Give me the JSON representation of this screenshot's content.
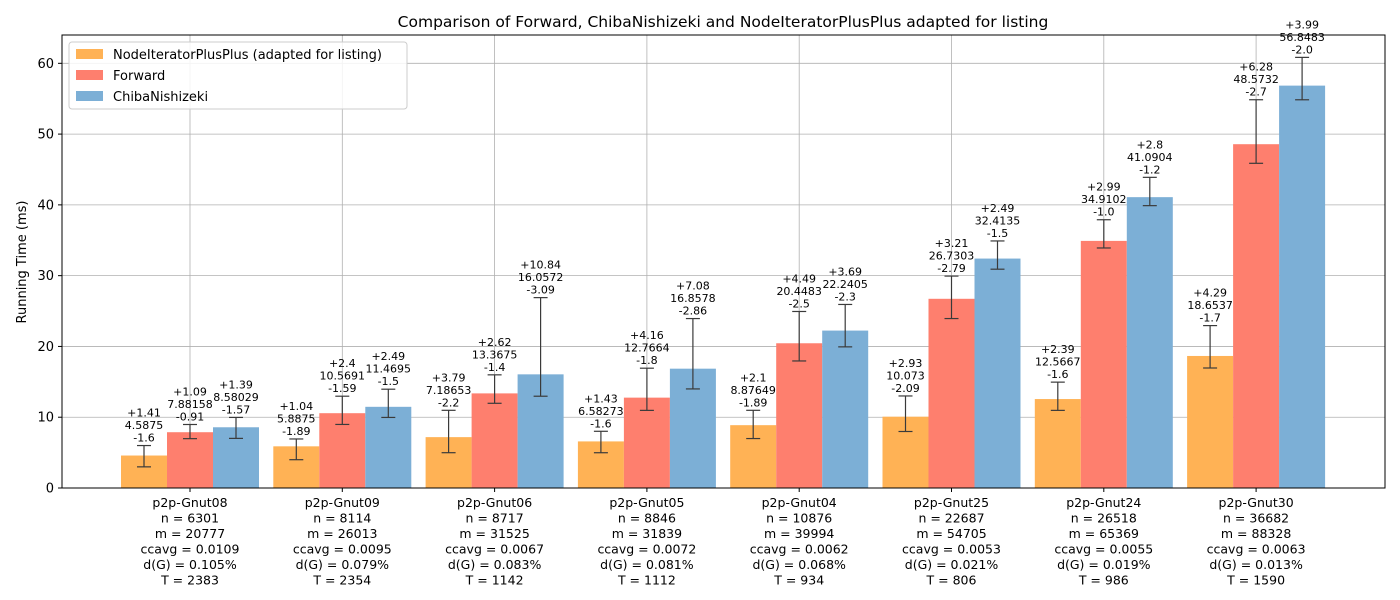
{
  "chart_data": {
    "type": "bar",
    "title": "Comparison of Forward, ChibaNishizeki and NodeIteratorPlusPlus adapted for listing",
    "xlabel": "",
    "ylabel": "Running Time (ms)",
    "ylim": [
      0,
      64
    ],
    "yticks": [
      0,
      10,
      20,
      30,
      40,
      50,
      60
    ],
    "grid": true,
    "legend_position": "top-left",
    "categories": [
      [
        "p2p-Gnut08",
        "n = 6301",
        "m = 20777",
        "ccavg = 0.0109",
        "d(G) = 0.105%",
        "T = 2383"
      ],
      [
        "p2p-Gnut09",
        "n = 8114",
        "m = 26013",
        "ccavg = 0.0095",
        "d(G) = 0.079%",
        "T = 2354"
      ],
      [
        "p2p-Gnut06",
        "n = 8717",
        "m = 31525",
        "ccavg = 0.0067",
        "d(G) = 0.083%",
        "T = 1142"
      ],
      [
        "p2p-Gnut05",
        "n = 8846",
        "m = 31839",
        "ccavg = 0.0072",
        "d(G) = 0.081%",
        "T = 1112"
      ],
      [
        "p2p-Gnut04",
        "n = 10876",
        "m = 39994",
        "ccavg = 0.0062",
        "d(G) = 0.068%",
        "T = 934"
      ],
      [
        "p2p-Gnut25",
        "n = 22687",
        "m = 54705",
        "ccavg = 0.0053",
        "d(G) = 0.021%",
        "T = 806"
      ],
      [
        "p2p-Gnut24",
        "n = 26518",
        "m = 65369",
        "ccavg = 0.0055",
        "d(G) = 0.019%",
        "T = 986"
      ],
      [
        "p2p-Gnut30",
        "n = 36682",
        "m = 88328",
        "ccavg = 0.0063",
        "d(G) = 0.013%",
        "T = 1590"
      ]
    ],
    "series": [
      {
        "name": "NodeIteratorPlusPlus (adapted for listing)",
        "color": "#ffb255",
        "values": [
          4.5875,
          5.8875,
          7.18653,
          6.58273,
          8.87649,
          10.073,
          12.5667,
          18.6537
        ],
        "err_plus": [
          1.41,
          1.04,
          3.79,
          1.43,
          2.1,
          2.93,
          2.39,
          4.29
        ],
        "err_minus": [
          1.6,
          1.89,
          2.2,
          1.6,
          1.89,
          2.09,
          1.6,
          1.7
        ],
        "labels": [
          [
            "+1.41",
            "4.5875",
            "-1.6"
          ],
          [
            "+1.04",
            "5.8875",
            "-1.89"
          ],
          [
            "+3.79",
            "7.18653",
            "-2.2"
          ],
          [
            "+1.43",
            "6.58273",
            "-1.6"
          ],
          [
            "+2.1",
            "8.87649",
            "-1.89"
          ],
          [
            "+2.93",
            "10.073",
            "-2.09"
          ],
          [
            "+2.39",
            "12.5667",
            "-1.6"
          ],
          [
            "+4.29",
            "18.6537",
            "-1.7"
          ]
        ]
      },
      {
        "name": "Forward",
        "color": "#fe7f6e",
        "values": [
          7.88158,
          10.5691,
          13.3675,
          12.7664,
          20.4483,
          26.7303,
          34.9102,
          48.5732
        ],
        "err_plus": [
          1.09,
          2.4,
          2.62,
          4.16,
          4.49,
          3.21,
          2.99,
          6.28
        ],
        "err_minus": [
          0.91,
          1.59,
          1.4,
          1.8,
          2.5,
          2.79,
          1.0,
          2.7
        ],
        "labels": [
          [
            "+1.09",
            "7.88158",
            "-0.91"
          ],
          [
            "+2.4",
            "10.5691",
            "-1.59"
          ],
          [
            "+2.62",
            "13.3675",
            "-1.4"
          ],
          [
            "+4.16",
            "12.7664",
            "-1.8"
          ],
          [
            "+4.49",
            "20.4483",
            "-2.5"
          ],
          [
            "+3.21",
            "26.7303",
            "-2.79"
          ],
          [
            "+2.99",
            "34.9102",
            "-1.0"
          ],
          [
            "+6.28",
            "48.5732",
            "-2.7"
          ]
        ]
      },
      {
        "name": "ChibaNishizeki",
        "color": "#7cafd6",
        "values": [
          8.58029,
          11.4695,
          16.0572,
          16.8578,
          22.2405,
          32.4135,
          41.0904,
          56.8483
        ],
        "err_plus": [
          1.39,
          2.49,
          10.84,
          7.08,
          3.69,
          2.49,
          2.8,
          3.99
        ],
        "err_minus": [
          1.57,
          1.5,
          3.09,
          2.86,
          2.3,
          1.5,
          1.2,
          2.0
        ],
        "labels": [
          [
            "+1.39",
            "8.58029",
            "-1.57"
          ],
          [
            "+2.49",
            "11.4695",
            "-1.5"
          ],
          [
            "+10.84",
            "16.0572",
            "-3.09"
          ],
          [
            "+7.08",
            "16.8578",
            "-2.86"
          ],
          [
            "+3.69",
            "22.2405",
            "-2.3"
          ],
          [
            "+2.49",
            "32.4135",
            "-1.5"
          ],
          [
            "+2.8",
            "41.0904",
            "-1.2"
          ],
          [
            "+3.99",
            "56.8483",
            "-2.0"
          ]
        ]
      }
    ]
  }
}
